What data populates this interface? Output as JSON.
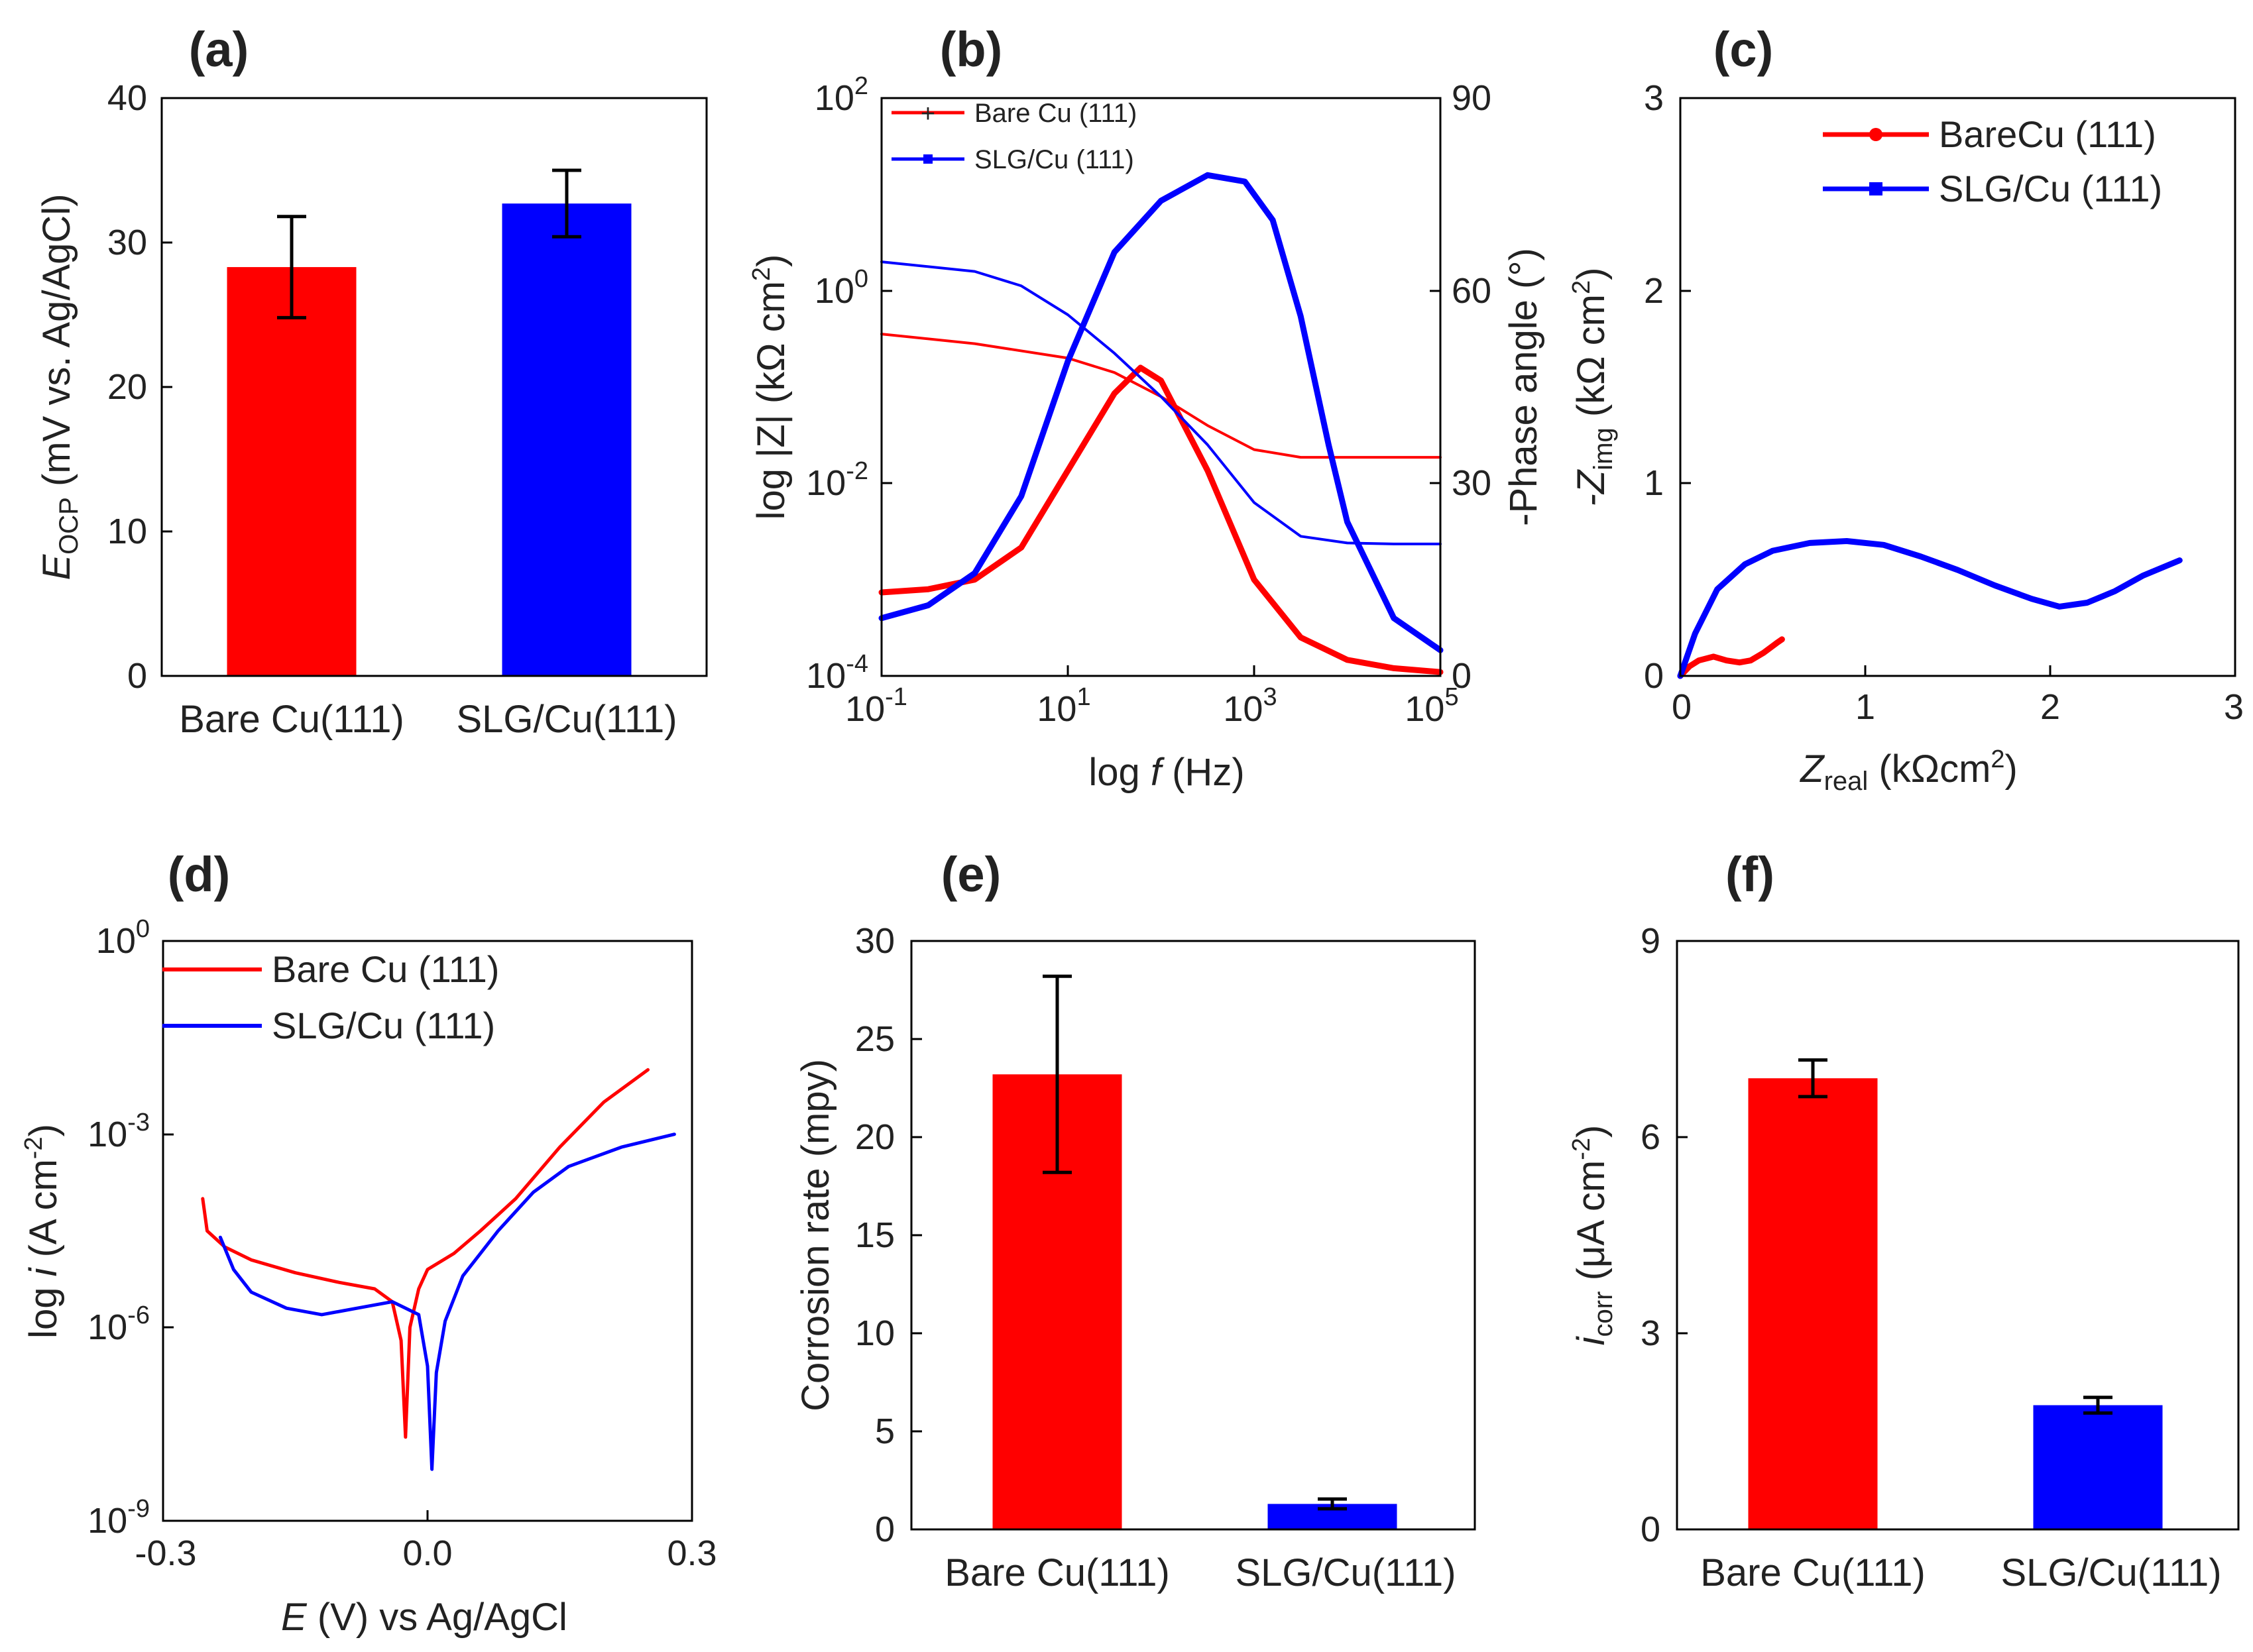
{
  "colors": {
    "red": "#ff0000",
    "blue": "#0000ff",
    "axis": "#000000",
    "text": "#222222"
  },
  "chart_data": [
    {
      "panel": "(a)",
      "type": "bar",
      "categories": [
        "Bare Cu(111)",
        "SLG/Cu(111)"
      ],
      "values": [
        28.3,
        32.7
      ],
      "errors": [
        3.5,
        2.3
      ],
      "ylabel": "E_OCP (mV vs. Ag/AgCl)",
      "ylabel_main": "E",
      "ylabel_sub": "OCP",
      "ylabel_rest": " (mV vs. Ag/AgCl)",
      "ylim": [
        0,
        40
      ],
      "yticks": [
        "0",
        "10",
        "20",
        "30",
        "40"
      ]
    },
    {
      "panel": "(b)",
      "type": "line",
      "xlabel": "log f (Hz)",
      "xlabel_a": "log ",
      "xlabel_f": "f",
      "xlabel_b": " (Hz)",
      "ylabel_left": "log |Z| (kΩ cm²)",
      "ylabel_left_text": "log |Z| (kΩ cm",
      "ylabel_left_sup": "2",
      "ylabel_left_close": ")",
      "ylabel_right": "-Phase angle (°)",
      "xlim_log10": [
        -1,
        5
      ],
      "ylim_left_log10": [
        -4,
        2
      ],
      "ylim_right": [
        0,
        90
      ],
      "x_tick_exponents": [
        "-1",
        "1",
        "3",
        "5"
      ],
      "y_left_tick_exponents": [
        "-4",
        "-2",
        "0",
        "2"
      ],
      "y_right_ticks": [
        "0",
        "30",
        "60",
        "90"
      ],
      "legend": [
        "Bare Cu (111)",
        "SLG/Cu (111)"
      ],
      "series": [
        {
          "name": "Bare Cu (111) |Z|",
          "log_f": [
            -1,
            0,
            1,
            1.5,
            2,
            2.5,
            3,
            3.5,
            4,
            5
          ],
          "log_Z": [
            -0.45,
            -0.55,
            -0.7,
            -0.85,
            -1.1,
            -1.4,
            -1.65,
            -1.73,
            -1.73,
            -1.73
          ]
        },
        {
          "name": "Bare Cu (111) phase",
          "log_f": [
            -1,
            -0.5,
            0,
            0.5,
            1,
            1.5,
            1.78,
            2,
            2.5,
            3,
            3.5,
            4,
            4.5,
            5
          ],
          "phase": [
            13,
            13.5,
            15,
            20,
            32,
            44,
            48,
            46,
            32,
            15,
            6,
            2.5,
            1.2,
            0.6
          ]
        },
        {
          "name": "SLG/Cu (111) |Z|",
          "log_f": [
            -1,
            0,
            0.5,
            1,
            1.5,
            2,
            2.5,
            3,
            3.5,
            4,
            4.5,
            5
          ],
          "log_Z": [
            0.3,
            0.2,
            0.05,
            -0.25,
            -0.65,
            -1.1,
            -1.6,
            -2.2,
            -2.55,
            -2.62,
            -2.63,
            -2.63
          ]
        },
        {
          "name": "SLG/Cu (111) phase",
          "log_f": [
            -1,
            -0.5,
            0,
            0.5,
            1,
            1.5,
            2,
            2.5,
            2.9,
            3.2,
            3.5,
            3.8,
            4,
            4.5,
            5
          ],
          "phase": [
            9,
            11,
            16,
            28,
            49,
            66,
            74,
            78,
            77,
            71,
            56,
            36,
            24,
            9,
            4
          ]
        }
      ]
    },
    {
      "panel": "(c)",
      "type": "line",
      "xlabel": "Z_real (kΩcm²)",
      "xlabel_main": "Z",
      "xlabel_sub": "real",
      "xlabel_text": " (kΩcm",
      "xlabel_sup": "2",
      "xlabel_close": ")",
      "ylabel": "-Z_img (kΩ cm²)",
      "ylabel_pre": "-Z",
      "ylabel_sub": "img",
      "ylabel_text": " (kΩ cm",
      "ylabel_sup": "2",
      "ylabel_close": ")",
      "xlim": [
        0,
        3
      ],
      "ylim": [
        0,
        3
      ],
      "xticks": [
        "0",
        "1",
        "2",
        "3"
      ],
      "yticks": [
        "0",
        "1",
        "2",
        "3"
      ],
      "legend": [
        "BareCu (111)",
        "SLG/Cu (111)"
      ],
      "series": [
        {
          "name": "BareCu (111)",
          "x": [
            0,
            0.05,
            0.1,
            0.18,
            0.25,
            0.32,
            0.38,
            0.45,
            0.52,
            0.55
          ],
          "y": [
            0,
            0.05,
            0.08,
            0.1,
            0.08,
            0.07,
            0.08,
            0.12,
            0.17,
            0.19
          ]
        },
        {
          "name": "SLG/Cu (111)",
          "x": [
            0,
            0.08,
            0.2,
            0.35,
            0.5,
            0.7,
            0.9,
            1.1,
            1.3,
            1.5,
            1.7,
            1.9,
            2.05,
            2.2,
            2.35,
            2.5,
            2.7
          ],
          "y": [
            0,
            0.22,
            0.45,
            0.58,
            0.65,
            0.69,
            0.7,
            0.68,
            0.62,
            0.55,
            0.47,
            0.4,
            0.36,
            0.38,
            0.44,
            0.52,
            0.6
          ]
        }
      ]
    },
    {
      "panel": "(d)",
      "type": "line",
      "xlabel": "E (V) vs Ag/AgCl",
      "xlabel_e": "E",
      "xlabel_rest": " (V) vs Ag/AgCl",
      "ylabel": "log i (A cm⁻²)",
      "ylabel_a": "log ",
      "ylabel_i": "i",
      "ylabel_b": " (A cm",
      "ylabel_sup": "-2",
      "ylabel_close": ")",
      "xlim": [
        -0.3,
        0.3
      ],
      "ylim_log10": [
        -9,
        0
      ],
      "xticks": [
        "-0.3",
        "0.0",
        "0.3"
      ],
      "y_tick_exponents": [
        "-9",
        "-6",
        "-3",
        "0"
      ],
      "legend": [
        "Bare Cu (111)",
        "SLG/Cu (111)"
      ],
      "series": [
        {
          "name": "Bare Cu (111)",
          "E": [
            -0.255,
            -0.25,
            -0.23,
            -0.2,
            -0.15,
            -0.1,
            -0.06,
            -0.04,
            -0.03,
            -0.025,
            -0.02,
            -0.01,
            0.0,
            0.03,
            0.06,
            0.1,
            0.15,
            0.2,
            0.25
          ],
          "log_i": [
            -4.0,
            -4.5,
            -4.75,
            -4.95,
            -5.15,
            -5.3,
            -5.4,
            -5.6,
            -6.2,
            -7.7,
            -6.0,
            -5.4,
            -5.1,
            -4.85,
            -4.5,
            -4.0,
            -3.2,
            -2.5,
            -2.0
          ]
        },
        {
          "name": "SLG/Cu (111)",
          "E": [
            -0.235,
            -0.22,
            -0.2,
            -0.16,
            -0.12,
            -0.08,
            -0.04,
            -0.01,
            0.0,
            0.005,
            0.01,
            0.02,
            0.04,
            0.08,
            0.12,
            0.16,
            0.22,
            0.28
          ],
          "log_i": [
            -4.6,
            -5.1,
            -5.45,
            -5.7,
            -5.8,
            -5.7,
            -5.6,
            -5.8,
            -6.6,
            -8.2,
            -6.7,
            -5.9,
            -5.2,
            -4.5,
            -3.9,
            -3.5,
            -3.2,
            -3.0
          ]
        }
      ]
    },
    {
      "panel": "(e)",
      "type": "bar",
      "categories": [
        "Bare Cu(111)",
        "SLG/Cu(111)"
      ],
      "values": [
        23.2,
        1.3
      ],
      "errors": [
        5.0,
        0.25
      ],
      "ylabel": "Corrosion rate (mpy)",
      "ylim": [
        0,
        30
      ],
      "yticks": [
        "0",
        "5",
        "10",
        "15",
        "20",
        "25",
        "30"
      ]
    },
    {
      "panel": "(f)",
      "type": "bar",
      "categories": [
        "Bare Cu(111)",
        "SLG/Cu(111)"
      ],
      "values": [
        6.9,
        1.9
      ],
      "errors": [
        0.28,
        0.12
      ],
      "ylabel": "i_corr (μA cm⁻²)",
      "ylabel_main": "i",
      "ylabel_sub": "corr",
      "ylabel_text": " (μA cm",
      "ylabel_sup": "-2",
      "ylabel_close": ")",
      "ylim": [
        0,
        9
      ],
      "yticks": [
        "0",
        "3",
        "6",
        "9"
      ]
    }
  ]
}
